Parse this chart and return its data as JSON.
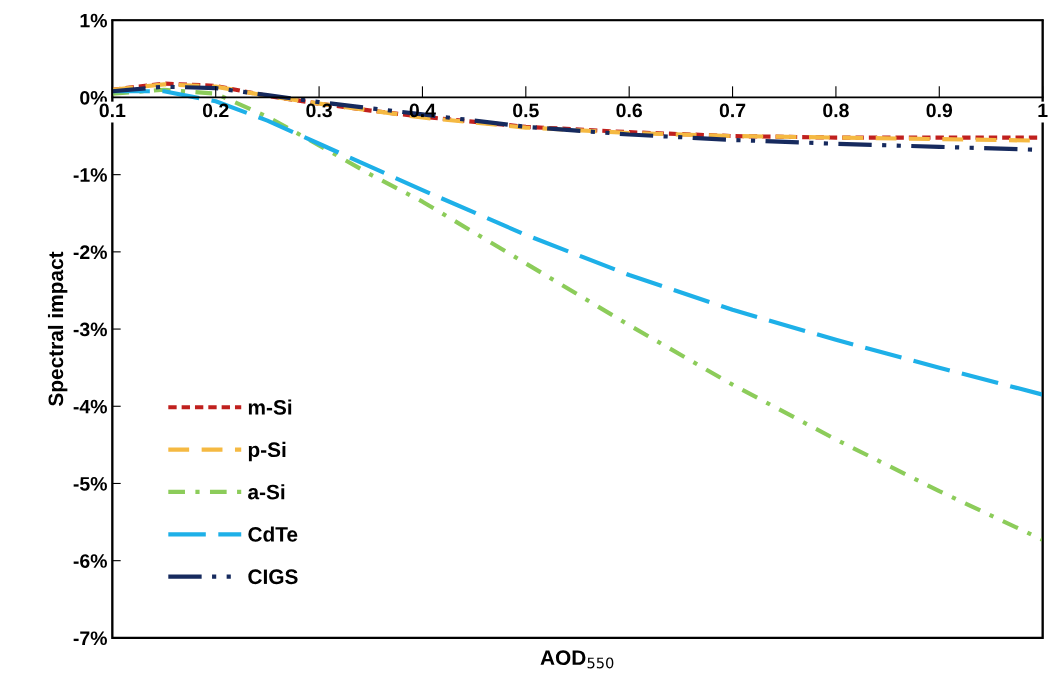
{
  "chart_data": {
    "type": "line",
    "xlabel": "AOD$_{550}$",
    "ylabel": "Spectral impact",
    "x": [
      0.1,
      0.15,
      0.2,
      0.25,
      0.3,
      0.35,
      0.4,
      0.5,
      0.6,
      0.7,
      0.8,
      0.9,
      1.0
    ],
    "series": [
      {
        "name": "m-Si",
        "color": "#c0201e",
        "line_style": "dotted",
        "values": [
          0.1,
          0.18,
          0.15,
          0.02,
          -0.08,
          -0.17,
          -0.25,
          -0.38,
          -0.45,
          -0.5,
          -0.52,
          -0.52,
          -0.52
        ]
      },
      {
        "name": "p-Si",
        "color": "#f5b942",
        "line_style": "dashed",
        "values": [
          0.1,
          0.17,
          0.14,
          0.02,
          -0.08,
          -0.17,
          -0.26,
          -0.39,
          -0.46,
          -0.5,
          -0.52,
          -0.54,
          -0.56
        ]
      },
      {
        "name": "a-Si",
        "color": "#8ccc5a",
        "line_style": "dashdot",
        "values": [
          0.05,
          0.1,
          0.05,
          -0.25,
          -0.62,
          -1.0,
          -1.35,
          -2.15,
          -2.95,
          -3.72,
          -4.43,
          -5.1,
          -5.73
        ]
      },
      {
        "name": "CdTe",
        "color": "#1eb0e8",
        "line_style": "longdash",
        "values": [
          0.08,
          0.08,
          -0.05,
          -0.3,
          -0.6,
          -0.9,
          -1.2,
          -1.78,
          -2.3,
          -2.75,
          -3.14,
          -3.5,
          -3.85
        ]
      },
      {
        "name": "CIGS",
        "color": "#162a5e",
        "line_style": "longdashdot",
        "values": [
          0.08,
          0.14,
          0.12,
          0.03,
          -0.06,
          -0.14,
          -0.22,
          -0.38,
          -0.48,
          -0.55,
          -0.6,
          -0.64,
          -0.68
        ]
      }
    ],
    "xlim": [
      0.1,
      1.0
    ],
    "ylim": [
      -7,
      1
    ],
    "xticks": [
      0.1,
      0.2,
      0.3,
      0.4,
      0.5,
      0.6,
      0.7,
      0.8,
      0.9,
      {
        "value": 1.0,
        "label": "1"
      }
    ],
    "yticks": [
      {
        "value": 1,
        "label": "1%"
      },
      {
        "value": 0,
        "label": "0%"
      },
      {
        "value": -1,
        "label": "-1%"
      },
      {
        "value": -2,
        "label": "-2%"
      },
      {
        "value": -3,
        "label": "-3%"
      },
      {
        "value": -4,
        "label": "-4%"
      },
      {
        "value": -5,
        "label": "-5%"
      },
      {
        "value": -6,
        "label": "-6%"
      },
      {
        "value": -7,
        "label": "-7%"
      }
    ],
    "grid": false,
    "legend": "bottom left"
  }
}
